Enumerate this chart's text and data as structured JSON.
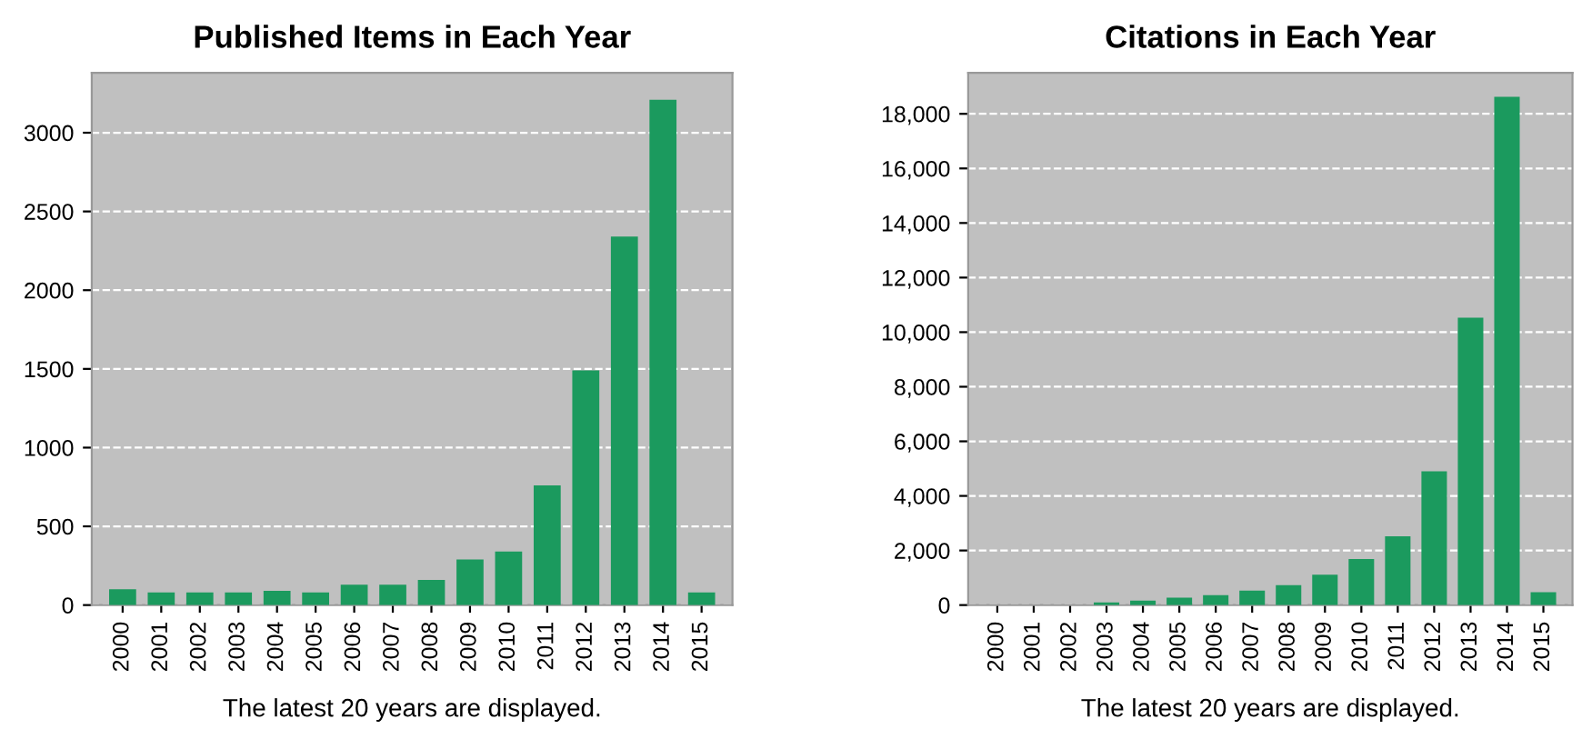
{
  "chart_data": [
    {
      "type": "bar",
      "title": "Published Items in Each Year",
      "categories": [
        "2000",
        "2001",
        "2002",
        "2003",
        "2004",
        "2005",
        "2006",
        "2007",
        "2008",
        "2009",
        "2010",
        "2011",
        "2012",
        "2013",
        "2014",
        "2015"
      ],
      "values": [
        100,
        80,
        80,
        80,
        90,
        80,
        130,
        130,
        160,
        290,
        340,
        760,
        1490,
        2340,
        3210,
        80
      ],
      "color": "#1b9a5e",
      "ylim": [
        0,
        3380
      ],
      "yticks": [
        0,
        500,
        1000,
        1500,
        2000,
        2500,
        3000
      ],
      "grid": "y",
      "annotations": [
        "The latest 20 years are displayed."
      ]
    },
    {
      "type": "bar",
      "title": "Citations in Each Year",
      "categories": [
        "2000",
        "2001",
        "2002",
        "2003",
        "2004",
        "2005",
        "2006",
        "2007",
        "2008",
        "2009",
        "2010",
        "2011",
        "2012",
        "2013",
        "2014",
        "2015"
      ],
      "values": [
        0,
        0,
        0,
        100,
        160,
        270,
        360,
        530,
        730,
        1110,
        1690,
        2520,
        4900,
        10530,
        18620,
        470
      ],
      "color": "#1b9a5e",
      "ylim": [
        0,
        19500
      ],
      "yticks": [
        0,
        {
          "value": 2000,
          "label": "2,000"
        },
        {
          "value": 4000,
          "label": "4,000"
        },
        {
          "value": 6000,
          "label": "6,000"
        },
        {
          "value": 8000,
          "label": "8,000"
        },
        {
          "value": 10000,
          "label": "10,000"
        },
        {
          "value": 12000,
          "label": "12,000"
        },
        {
          "value": 14000,
          "label": "14,000"
        },
        {
          "value": 16000,
          "label": "16,000"
        },
        {
          "value": 18000,
          "label": "18,000"
        }
      ],
      "grid": "y",
      "annotations": [
        "The latest 20 years are displayed."
      ]
    }
  ]
}
